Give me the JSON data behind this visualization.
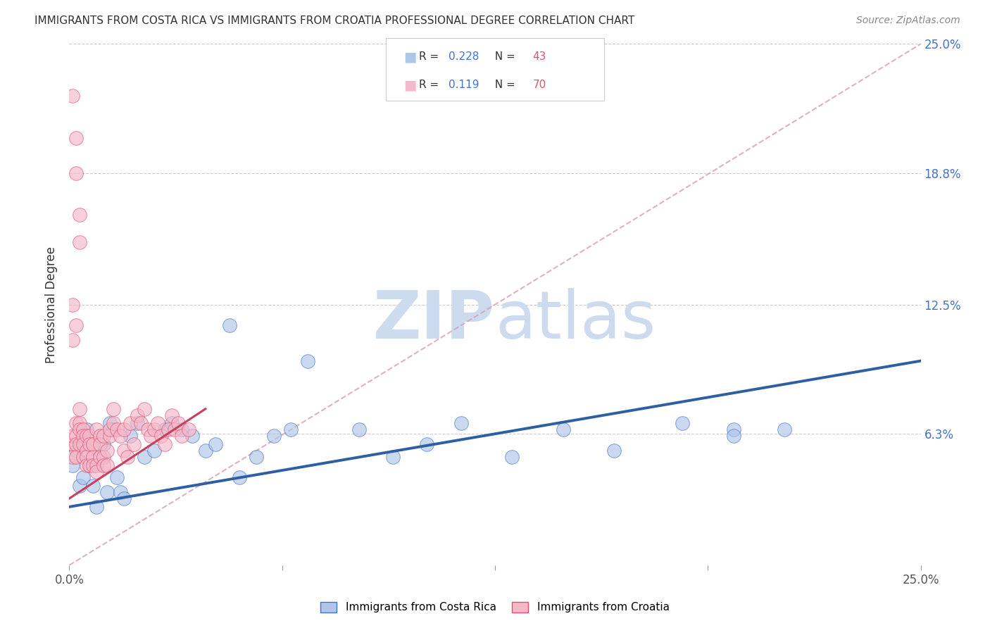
{
  "title": "IMMIGRANTS FROM COSTA RICA VS IMMIGRANTS FROM CROATIA PROFESSIONAL DEGREE CORRELATION CHART",
  "source": "Source: ZipAtlas.com",
  "ylabel": "Professional Degree",
  "xlim": [
    0,
    0.25
  ],
  "ylim": [
    0,
    0.25
  ],
  "costa_rica_R": 0.228,
  "costa_rica_N": 43,
  "croatia_R": 0.119,
  "croatia_N": 70,
  "costa_rica_color": "#aec6e8",
  "croatia_color": "#f5b8c8",
  "costa_rica_edge_color": "#4472c4",
  "croatia_edge_color": "#e05070",
  "costa_rica_line_color": "#2e5fa3",
  "croatia_line_color": "#c84060",
  "trend_line_color": "#d0a0b0",
  "background_color": "#ffffff",
  "watermark_color": "#ccdcee",
  "legend_r_color": "#4472c4",
  "legend_n_color": "#e05070",
  "costa_rica_x": [
    0.001,
    0.002,
    0.003,
    0.004,
    0.005,
    0.006,
    0.007,
    0.008,
    0.009,
    0.01,
    0.011,
    0.012,
    0.013,
    0.014,
    0.015,
    0.016,
    0.018,
    0.02,
    0.022,
    0.025,
    0.028,
    0.03,
    0.033,
    0.036,
    0.04,
    0.043,
    0.047,
    0.05,
    0.055,
    0.06,
    0.065,
    0.07,
    0.085,
    0.095,
    0.105,
    0.115,
    0.13,
    0.145,
    0.16,
    0.18,
    0.195,
    0.21,
    0.195
  ],
  "costa_rica_y": [
    0.048,
    0.055,
    0.038,
    0.042,
    0.065,
    0.048,
    0.038,
    0.028,
    0.052,
    0.058,
    0.035,
    0.068,
    0.065,
    0.042,
    0.035,
    0.032,
    0.062,
    0.068,
    0.052,
    0.055,
    0.065,
    0.068,
    0.065,
    0.062,
    0.055,
    0.058,
    0.115,
    0.042,
    0.052,
    0.062,
    0.065,
    0.098,
    0.065,
    0.052,
    0.058,
    0.068,
    0.052,
    0.065,
    0.055,
    0.068,
    0.065,
    0.065,
    0.062
  ],
  "croatia_x": [
    0.001,
    0.001,
    0.001,
    0.002,
    0.002,
    0.002,
    0.002,
    0.003,
    0.003,
    0.003,
    0.003,
    0.004,
    0.004,
    0.004,
    0.004,
    0.005,
    0.005,
    0.005,
    0.005,
    0.006,
    0.006,
    0.006,
    0.007,
    0.007,
    0.007,
    0.008,
    0.008,
    0.008,
    0.009,
    0.009,
    0.009,
    0.01,
    0.01,
    0.01,
    0.011,
    0.011,
    0.012,
    0.012,
    0.013,
    0.013,
    0.014,
    0.015,
    0.016,
    0.016,
    0.017,
    0.018,
    0.019,
    0.02,
    0.021,
    0.022,
    0.023,
    0.024,
    0.025,
    0.026,
    0.027,
    0.028,
    0.029,
    0.03,
    0.031,
    0.032,
    0.033,
    0.035,
    0.001,
    0.002,
    0.002,
    0.003,
    0.003,
    0.001,
    0.002,
    0.001
  ],
  "croatia_y": [
    0.058,
    0.052,
    0.062,
    0.062,
    0.068,
    0.058,
    0.052,
    0.068,
    0.075,
    0.065,
    0.058,
    0.065,
    0.062,
    0.058,
    0.052,
    0.055,
    0.052,
    0.048,
    0.062,
    0.048,
    0.062,
    0.058,
    0.058,
    0.052,
    0.048,
    0.048,
    0.065,
    0.045,
    0.062,
    0.058,
    0.052,
    0.052,
    0.048,
    0.062,
    0.048,
    0.055,
    0.062,
    0.065,
    0.068,
    0.075,
    0.065,
    0.062,
    0.055,
    0.065,
    0.052,
    0.068,
    0.058,
    0.072,
    0.068,
    0.075,
    0.065,
    0.062,
    0.065,
    0.068,
    0.062,
    0.058,
    0.065,
    0.072,
    0.065,
    0.068,
    0.062,
    0.065,
    0.225,
    0.205,
    0.188,
    0.168,
    0.155,
    0.125,
    0.115,
    0.108
  ],
  "blue_line_x": [
    0.0,
    0.25
  ],
  "blue_line_y": [
    0.028,
    0.098
  ],
  "pink_line_x": [
    0.0,
    0.04
  ],
  "pink_line_y": [
    0.032,
    0.075
  ],
  "diag_line_x": [
    0.0,
    0.25
  ],
  "diag_line_y": [
    0.0,
    0.25
  ]
}
